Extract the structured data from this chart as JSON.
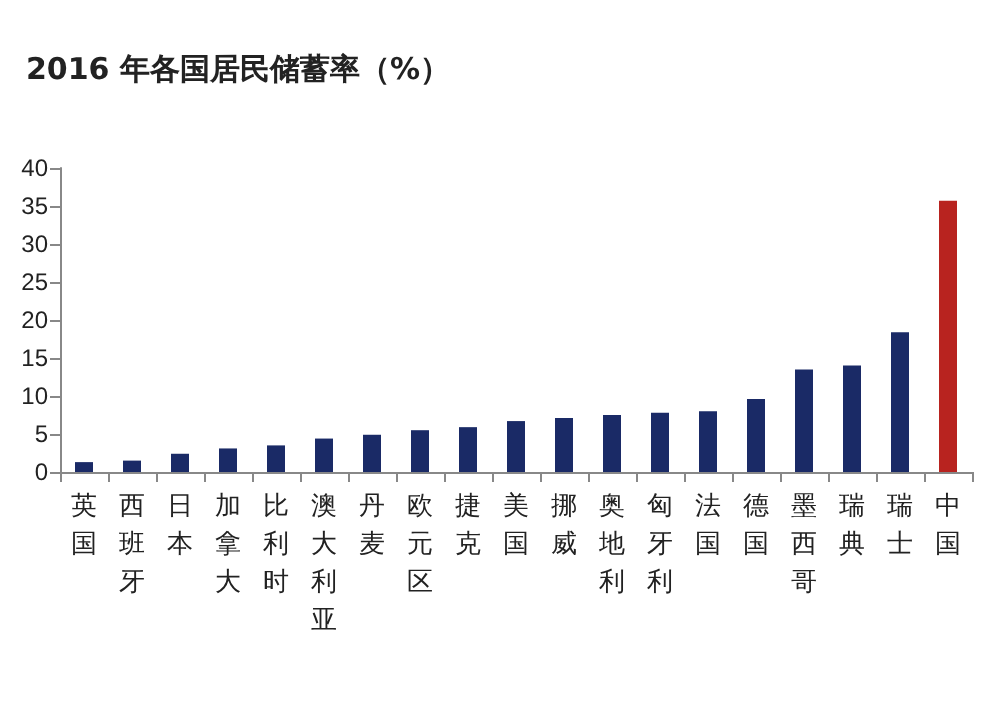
{
  "chart_data": {
    "type": "bar",
    "title": "2016 年各国居民储蓄率（%）",
    "categories": [
      "英国",
      "西班牙",
      "日本",
      "加拿大",
      "比利时",
      "澳大利亚",
      "丹麦",
      "欧元区",
      "捷克",
      "美国",
      "挪威",
      "奥地利",
      "匈牙利",
      "法国",
      "德国",
      "墨西哥",
      "瑞典",
      "瑞士",
      "中国"
    ],
    "values": [
      1.3,
      1.5,
      2.4,
      3.1,
      3.5,
      4.4,
      4.9,
      5.5,
      5.9,
      6.7,
      7.1,
      7.5,
      7.8,
      8.0,
      9.6,
      13.5,
      14,
      18.4,
      35.7
    ],
    "colors": [
      "#1a2a66",
      "#1a2a66",
      "#1a2a66",
      "#1a2a66",
      "#1a2a66",
      "#1a2a66",
      "#1a2a66",
      "#1a2a66",
      "#1a2a66",
      "#1a2a66",
      "#1a2a66",
      "#1a2a66",
      "#1a2a66",
      "#1a2a66",
      "#1a2a66",
      "#1a2a66",
      "#1a2a66",
      "#1a2a66",
      "#b8231f"
    ],
    "ylim": [
      0,
      40
    ],
    "yticks": [
      0,
      5,
      10,
      15,
      20,
      25,
      30,
      35,
      40
    ],
    "grid": false
  }
}
